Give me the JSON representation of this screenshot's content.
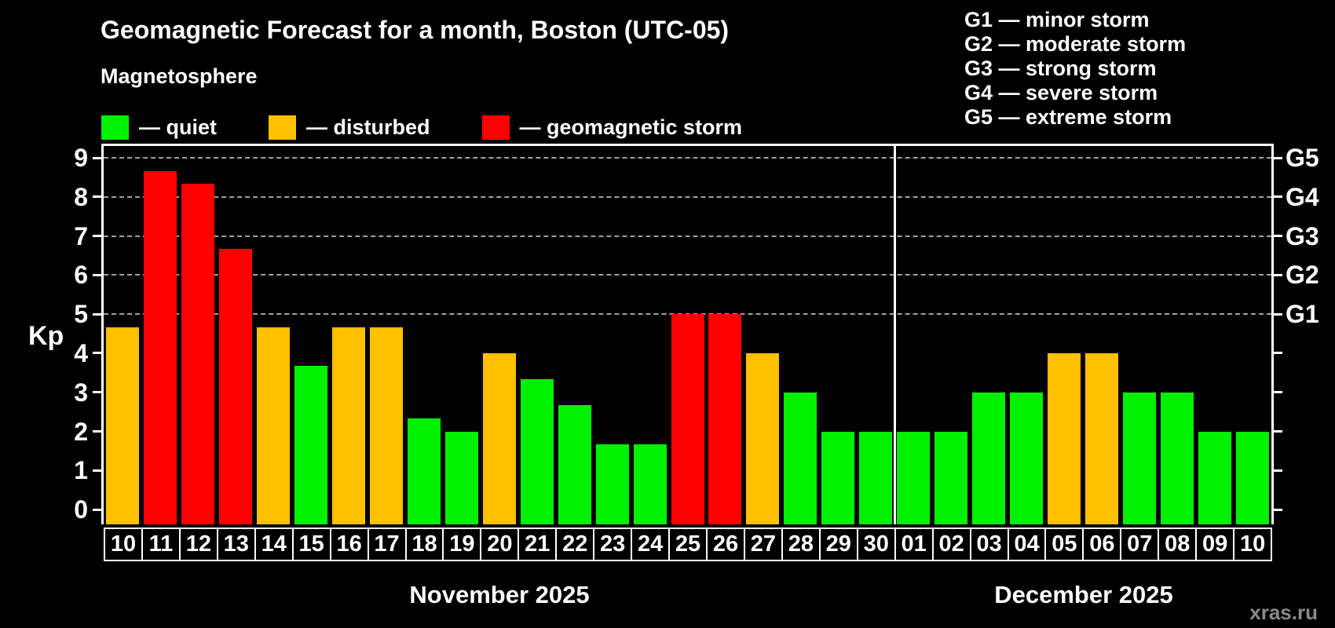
{
  "title": "Geomagnetic Forecast for a month, Boston (UTC-05)",
  "subtitle": "Magnetosphere",
  "watermark": "xras.ru",
  "colors": {
    "quiet": "#00F000",
    "disturbed": "#FFC000",
    "storm": "#FF0000",
    "grid": "#A0A0A0",
    "axis": "#FFFFFF",
    "watermark": "#8A8A8A"
  },
  "legend": {
    "items": [
      {
        "label": "— quiet",
        "level": "quiet"
      },
      {
        "label": "— disturbed",
        "level": "disturbed"
      },
      {
        "label": "— geomagnetic storm",
        "level": "storm"
      }
    ]
  },
  "storm_scale": [
    "G1 — minor storm",
    "G2 — moderate storm",
    "G3 — strong storm",
    "G4 — severe storm",
    "G5 — extreme storm"
  ],
  "y_axis": {
    "label": "Kp",
    "ticks": [
      0,
      1,
      2,
      3,
      4,
      5,
      6,
      7,
      8,
      9
    ]
  },
  "right_axis": {
    "labels": [
      {
        "text": "G1",
        "kp": 5
      },
      {
        "text": "G2",
        "kp": 6
      },
      {
        "text": "G3",
        "kp": 7
      },
      {
        "text": "G4",
        "kp": 8
      },
      {
        "text": "G5",
        "kp": 9
      }
    ]
  },
  "months": [
    {
      "label": "November 2025",
      "days": 21
    },
    {
      "label": "December 2025",
      "days": 10
    }
  ],
  "chart_data": {
    "type": "bar",
    "title": "Geomagnetic Forecast for a month, Boston (UTC-05)",
    "xlabel": "",
    "ylabel": "Kp",
    "ylim": [
      0,
      9
    ],
    "grid": "dashed horizontal at Kp 5-9 (G1-G5 levels)",
    "legend_position": "top-left",
    "categories": [
      "10",
      "11",
      "12",
      "13",
      "14",
      "15",
      "16",
      "17",
      "18",
      "19",
      "20",
      "21",
      "22",
      "23",
      "24",
      "25",
      "26",
      "27",
      "28",
      "29",
      "30",
      "01",
      "02",
      "03",
      "04",
      "05",
      "06",
      "07",
      "08",
      "09",
      "10"
    ],
    "values": [
      4.67,
      8.67,
      8.33,
      6.67,
      4.67,
      3.67,
      4.67,
      4.67,
      2.33,
      2,
      4,
      3.33,
      2.67,
      1.67,
      1.67,
      5,
      5,
      4,
      3,
      2,
      2,
      2,
      2,
      3,
      3,
      4,
      4,
      3,
      3,
      2,
      2
    ],
    "levels": [
      "disturbed",
      "storm",
      "storm",
      "storm",
      "disturbed",
      "quiet",
      "disturbed",
      "disturbed",
      "quiet",
      "quiet",
      "disturbed",
      "quiet",
      "quiet",
      "quiet",
      "quiet",
      "storm",
      "storm",
      "disturbed",
      "quiet",
      "quiet",
      "quiet",
      "quiet",
      "quiet",
      "quiet",
      "quiet",
      "disturbed",
      "disturbed",
      "quiet",
      "quiet",
      "quiet",
      "quiet"
    ]
  }
}
